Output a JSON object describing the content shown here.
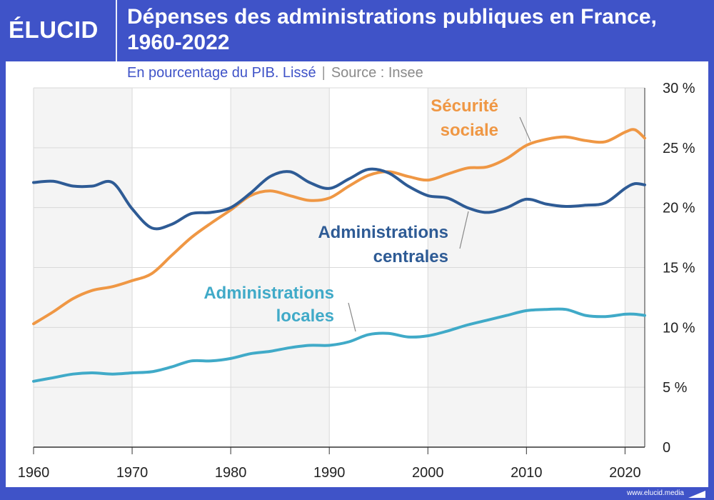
{
  "brand": {
    "logo_text": "ÉLUCID",
    "url": "www.elucid.media"
  },
  "colors": {
    "frame": "#3f53c8",
    "orange": "#ef9744",
    "navy": "#2e5b95",
    "teal": "#40aac8",
    "grid": "#d9d9d9",
    "band": "#f4f4f4"
  },
  "chart_data": {
    "type": "line",
    "title": "Dépenses des administrations publiques en France, 1960-2022",
    "subtitle": "En pourcentage du PIB. Lissé",
    "source": "Source : Insee",
    "xlabel": "",
    "ylabel": "",
    "xlim": [
      1960,
      2022
    ],
    "ylim": [
      0,
      30
    ],
    "x_ticks": [
      "1960",
      "1970",
      "1980",
      "1990",
      "2000",
      "2010",
      "2020"
    ],
    "y_ticks": [
      "0",
      "5 %",
      "10 %",
      "15 %",
      "20 %",
      "25 %",
      "30 %"
    ],
    "grid": true,
    "series": [
      {
        "name": "Sécurité sociale",
        "label_lines": [
          "Sécurité",
          "sociale"
        ],
        "color": "#ef9744",
        "x": [
          1960,
          1962,
          1964,
          1966,
          1968,
          1970,
          1972,
          1974,
          1976,
          1978,
          1980,
          1982,
          1984,
          1986,
          1988,
          1990,
          1992,
          1994,
          1996,
          1998,
          2000,
          2002,
          2004,
          2006,
          2008,
          2010,
          2012,
          2014,
          2016,
          2018,
          2020,
          2021,
          2022
        ],
        "values": [
          10.3,
          11.3,
          12.4,
          13.1,
          13.4,
          13.9,
          14.5,
          16.0,
          17.5,
          18.7,
          19.8,
          21.0,
          21.4,
          21.0,
          20.6,
          20.8,
          21.8,
          22.7,
          23.0,
          22.6,
          22.3,
          22.8,
          23.3,
          23.4,
          24.1,
          25.2,
          25.7,
          25.9,
          25.6,
          25.5,
          26.3,
          26.5,
          25.8
        ]
      },
      {
        "name": "Administrations centrales",
        "label_lines": [
          "Administrations",
          "centrales"
        ],
        "color": "#2e5b95",
        "x": [
          1960,
          1962,
          1964,
          1966,
          1968,
          1970,
          1972,
          1974,
          1976,
          1978,
          1980,
          1982,
          1984,
          1986,
          1988,
          1990,
          1992,
          1994,
          1996,
          1998,
          2000,
          2002,
          2004,
          2006,
          2008,
          2010,
          2012,
          2014,
          2016,
          2018,
          2020,
          2021,
          2022
        ],
        "values": [
          22.1,
          22.2,
          21.8,
          21.8,
          22.1,
          19.9,
          18.3,
          18.6,
          19.5,
          19.6,
          20.0,
          21.2,
          22.6,
          23.0,
          22.1,
          21.6,
          22.4,
          23.2,
          22.9,
          21.8,
          21.0,
          20.8,
          20.0,
          19.6,
          20.0,
          20.7,
          20.3,
          20.1,
          20.2,
          20.4,
          21.6,
          22.0,
          21.9
        ]
      },
      {
        "name": "Administrations locales",
        "label_lines": [
          "Administrations",
          "locales"
        ],
        "color": "#40aac8",
        "x": [
          1960,
          1962,
          1964,
          1966,
          1968,
          1970,
          1972,
          1974,
          1976,
          1978,
          1980,
          1982,
          1984,
          1986,
          1988,
          1990,
          1992,
          1994,
          1996,
          1998,
          2000,
          2002,
          2004,
          2006,
          2008,
          2010,
          2012,
          2014,
          2016,
          2018,
          2020,
          2021,
          2022
        ],
        "values": [
          5.5,
          5.8,
          6.1,
          6.2,
          6.1,
          6.2,
          6.3,
          6.7,
          7.2,
          7.2,
          7.4,
          7.8,
          8.0,
          8.3,
          8.5,
          8.5,
          8.8,
          9.4,
          9.5,
          9.2,
          9.3,
          9.7,
          10.2,
          10.6,
          11.0,
          11.4,
          11.5,
          11.5,
          11.0,
          10.9,
          11.1,
          11.1,
          11.0
        ]
      }
    ]
  }
}
